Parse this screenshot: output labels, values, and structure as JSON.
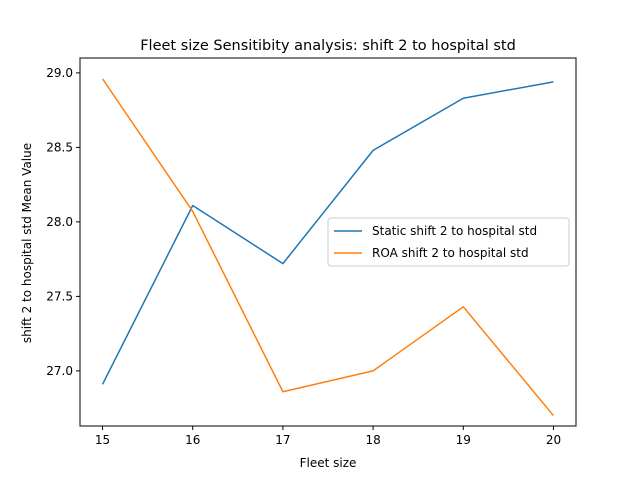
{
  "chart_data": {
    "type": "line",
    "title": "Fleet size Sensitibity analysis: shift 2 to hospital std",
    "xlabel": "Fleet size",
    "ylabel": "shift 2 to hospital std Mean Value",
    "x": [
      15,
      16,
      17,
      18,
      19,
      20
    ],
    "x_ticks": [
      "15",
      "16",
      "17",
      "18",
      "19",
      "20"
    ],
    "y_ticks": [
      "27.0",
      "27.5",
      "28.0",
      "28.5",
      "29.0"
    ],
    "y_tick_values": [
      27.0,
      27.5,
      28.0,
      28.5,
      29.0
    ],
    "xlim": [
      14.75,
      20.25
    ],
    "ylim": [
      26.63,
      29.1
    ],
    "grid": false,
    "legend_position": "center-right",
    "series": [
      {
        "name": "Static shift 2 to hospital std",
        "color": "#1f77b4",
        "values": [
          26.91,
          28.11,
          27.72,
          28.48,
          28.83,
          28.94
        ]
      },
      {
        "name": "ROA shift 2 to hospital std",
        "color": "#ff7f0e",
        "values": [
          28.96,
          28.07,
          26.86,
          27.0,
          27.43,
          26.7
        ]
      }
    ]
  }
}
